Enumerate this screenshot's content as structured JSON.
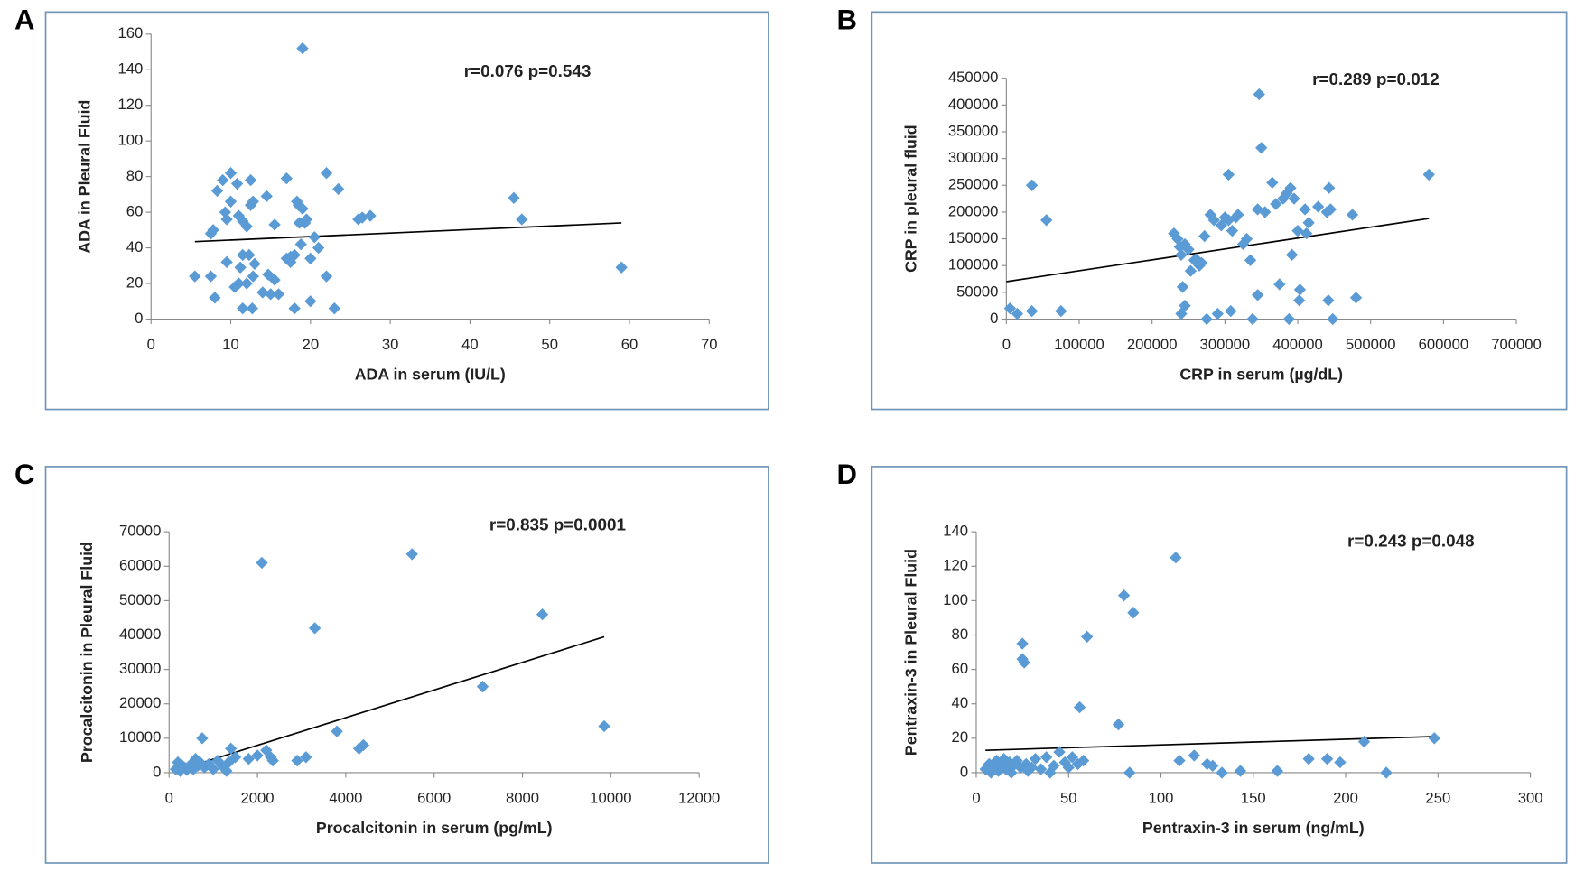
{
  "chart_data": [
    {
      "type": "scatter",
      "panel": "A",
      "annotation": "r=0.076 p=0.543",
      "xlabel": "ADA in serum (IU/L)",
      "ylabel": "ADA in Pleural Fluid",
      "color": "#5b9bd5",
      "x": [
        5.5,
        7.5,
        7.5,
        7.8,
        8,
        8.3,
        9,
        9.3,
        9.5,
        9.5,
        10,
        10,
        10.5,
        11,
        10.8,
        11,
        11.5,
        11.5,
        11.2,
        11.5,
        12,
        12,
        12.3,
        12.5,
        12.5,
        12.8,
        12.8,
        13,
        12.7,
        14,
        14.5,
        14.7,
        15,
        15.5,
        15.5,
        16,
        17,
        17,
        17.5,
        17.5,
        18,
        18,
        18.3,
        18.6,
        18.5,
        18.8,
        19,
        19,
        19.3,
        19.5,
        20,
        20,
        20.5,
        21,
        22,
        22,
        23,
        23.5,
        26,
        26.5,
        27.5,
        45.5,
        46.5,
        59
      ],
      "values": [
        24,
        24,
        48,
        50,
        12,
        72,
        78,
        60,
        56,
        32,
        82,
        66,
        18,
        20,
        76,
        58,
        55,
        36,
        29,
        6,
        52,
        20,
        36,
        64,
        78,
        66,
        24,
        31,
        6,
        15,
        69,
        25,
        14,
        53,
        22,
        14,
        79,
        34,
        35,
        32,
        36,
        6,
        66,
        54,
        64,
        42,
        152,
        62,
        54,
        56,
        34,
        10,
        46,
        40,
        82,
        24,
        6,
        73,
        56,
        57,
        58,
        68,
        56,
        29
      ],
      "trendline": {
        "x": [
          5.5,
          59
        ],
        "values": [
          43.5,
          54
        ]
      },
      "xlim": [
        0,
        70
      ],
      "xticks": [
        0,
        10,
        20,
        30,
        40,
        50,
        60,
        70
      ],
      "ylim": [
        0,
        160
      ],
      "yticks": [
        0,
        20,
        40,
        60,
        80,
        100,
        120,
        140,
        160
      ]
    },
    {
      "type": "scatter",
      "panel": "B",
      "annotation": "r=0.289 p=0.012",
      "xlabel": "CRP in serum (µg/dL)",
      "ylabel": "CRP in pleural fluid",
      "color": "#5b9bd5",
      "x": [
        5000,
        15000,
        35000,
        35000,
        55000,
        75000,
        230000,
        235000,
        238000,
        240000,
        240000,
        242000,
        245000,
        245000,
        250000,
        253000,
        258000,
        262000,
        265000,
        268000,
        272000,
        275000,
        280000,
        285000,
        290000,
        295000,
        300000,
        305000,
        305000,
        308000,
        310000,
        315000,
        318000,
        325000,
        330000,
        335000,
        338000,
        345000,
        345000,
        347000,
        350000,
        355000,
        365000,
        370000,
        375000,
        380000,
        385000,
        388000,
        390000,
        392000,
        395000,
        400000,
        402000,
        403000,
        410000,
        412000,
        415000,
        428000,
        440000,
        442000,
        443000,
        445000,
        448000,
        475000,
        480000,
        580000
      ],
      "values": [
        20000,
        10000,
        15000,
        250000,
        185000,
        15000,
        160000,
        150000,
        135000,
        120000,
        10000,
        60000,
        25000,
        140000,
        130000,
        90000,
        110000,
        110000,
        100000,
        105000,
        155000,
        0,
        195000,
        185000,
        10000,
        175000,
        190000,
        185000,
        270000,
        15000,
        165000,
        190000,
        195000,
        140000,
        150000,
        110000,
        0,
        45000,
        205000,
        420000,
        320000,
        200000,
        255000,
        215000,
        65000,
        225000,
        235000,
        0,
        245000,
        120000,
        225000,
        165000,
        35000,
        55000,
        205000,
        160000,
        180000,
        210000,
        200000,
        35000,
        245000,
        205000,
        0,
        195000,
        40000,
        270000
      ],
      "trendline": {
        "x": [
          0,
          580000
        ],
        "values": [
          70000,
          188000
        ]
      },
      "xlim": [
        0,
        700000
      ],
      "xticks": [
        0,
        100000,
        200000,
        300000,
        400000,
        500000,
        600000,
        700000
      ],
      "ylim": [
        0,
        450000
      ],
      "yticks": [
        0,
        50000,
        100000,
        150000,
        200000,
        250000,
        300000,
        350000,
        400000,
        450000
      ]
    },
    {
      "type": "scatter",
      "panel": "C",
      "annotation": "r=0.835 p=0.0001",
      "xlabel": "Procalcitonin  in serum (pg/mL)",
      "ylabel": "Procalcitonin  in Pleural Fluid",
      "color": "#5b9bd5",
      "x": [
        150,
        200,
        250,
        300,
        350,
        400,
        500,
        550,
        600,
        650,
        700,
        750,
        800,
        900,
        1000,
        1100,
        1200,
        1300,
        1350,
        1400,
        1500,
        1800,
        2000,
        2100,
        2200,
        2300,
        2350,
        2900,
        3100,
        3300,
        3800,
        4300,
        4400,
        5500,
        7100,
        8450,
        9850
      ],
      "values": [
        1000,
        3000,
        500,
        2000,
        1500,
        800,
        2500,
        1000,
        4000,
        2000,
        3000,
        10000,
        1500,
        2500,
        1000,
        3500,
        2000,
        500,
        3000,
        7000,
        4500,
        4000,
        5000,
        61000,
        6500,
        4500,
        3500,
        3500,
        4500,
        42000,
        12000,
        7000,
        8000,
        63500,
        25000,
        46000,
        13500
      ],
      "trendline": {
        "x": [
          150,
          9850
        ],
        "values": [
          500,
          39500
        ]
      },
      "xlim": [
        0,
        12000
      ],
      "xticks": [
        0,
        2000,
        4000,
        6000,
        8000,
        10000,
        12000
      ],
      "ylim": [
        0,
        70000
      ],
      "yticks": [
        0,
        10000,
        20000,
        30000,
        40000,
        50000,
        60000,
        70000
      ]
    },
    {
      "type": "scatter",
      "panel": "D",
      "annotation": "r=0.243 p=0.048",
      "xlabel": "Pentraxin-3 in serum (ng/mL)",
      "ylabel": "Pentraxin-3  in Pleural Fluid",
      "color": "#5b9bd5",
      "x": [
        5,
        7,
        8,
        10,
        11,
        12,
        14,
        15,
        16,
        18,
        19,
        20,
        22,
        24,
        25,
        25,
        26,
        27,
        28,
        30,
        32,
        35,
        38,
        40,
        42,
        45,
        48,
        50,
        52,
        55,
        56,
        58,
        60,
        77,
        80,
        83,
        85,
        108,
        110,
        118,
        125,
        128,
        133,
        143,
        163,
        180,
        190,
        197,
        210,
        222,
        248
      ],
      "values": [
        2,
        5,
        0,
        3,
        7,
        1,
        4,
        8,
        2,
        6,
        0,
        4,
        7,
        3,
        75,
        66,
        64,
        5,
        1,
        3,
        8,
        2,
        9,
        0,
        4,
        12,
        6,
        3,
        9,
        5,
        38,
        7,
        79,
        28,
        103,
        0,
        93,
        125,
        7,
        10,
        5,
        4,
        0,
        1,
        1,
        8,
        8,
        6,
        18,
        0,
        20
      ],
      "trendline": {
        "x": [
          5,
          248
        ],
        "values": [
          13,
          21
        ]
      },
      "xlim": [
        0,
        300
      ],
      "xticks": [
        0,
        50,
        100,
        150,
        200,
        250,
        300
      ],
      "ylim": [
        0,
        140
      ],
      "yticks": [
        0,
        20,
        40,
        60,
        80,
        100,
        120,
        140
      ]
    }
  ]
}
